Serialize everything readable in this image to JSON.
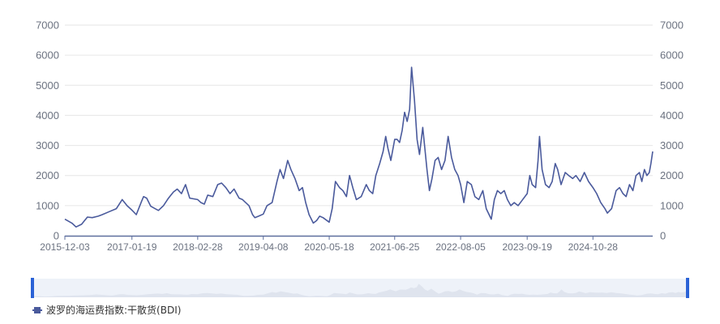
{
  "chart_data": {
    "type": "line",
    "title": "",
    "xlabel": "",
    "ylabel": "",
    "ylim": [
      0,
      7000
    ],
    "y_ticks": [
      0,
      1000,
      2000,
      3000,
      4000,
      5000,
      6000,
      7000
    ],
    "y_tick_labels": [
      "0",
      "1000",
      "2000",
      "3000",
      "4000",
      "5000",
      "6000",
      "7000"
    ],
    "x_range": [
      "2015-12-03",
      "2025-10-31"
    ],
    "x_tick_labels": [
      "2015-12-03",
      "2017-01-19",
      "2018-02-28",
      "2019-04-08",
      "2020-05-18",
      "2021-06-25",
      "2022-08-05",
      "2023-09-19",
      "2024-10-28"
    ],
    "dual_y_axis": true,
    "grid": "horizontal",
    "legend_position": "bottom-left",
    "colors": {
      "line": "#4a5a9c",
      "grid": "#e6e6e6",
      "axis": "#5e6f9e",
      "zoom_bg": "#eef2f9",
      "zoom_handle": "#2a62d6",
      "zoom_area": "#dfe4ee"
    },
    "series": [
      {
        "name": "波罗的海运费指数:干散货(BDI)",
        "points": [
          [
            "2015-12-03",
            550
          ],
          [
            "2016-01-15",
            420
          ],
          [
            "2016-02-10",
            290
          ],
          [
            "2016-03-15",
            380
          ],
          [
            "2016-04-20",
            620
          ],
          [
            "2016-05-20",
            600
          ],
          [
            "2016-06-25",
            650
          ],
          [
            "2016-07-20",
            700
          ],
          [
            "2016-09-01",
            800
          ],
          [
            "2016-10-15",
            900
          ],
          [
            "2016-11-20",
            1200
          ],
          [
            "2016-12-20",
            1000
          ],
          [
            "2017-01-19",
            850
          ],
          [
            "2017-02-15",
            700
          ],
          [
            "2017-03-20",
            1150
          ],
          [
            "2017-04-01",
            1300
          ],
          [
            "2017-04-20",
            1250
          ],
          [
            "2017-05-15",
            980
          ],
          [
            "2017-06-10",
            900
          ],
          [
            "2017-07-01",
            840
          ],
          [
            "2017-08-01",
            1000
          ],
          [
            "2017-09-01",
            1250
          ],
          [
            "2017-10-01",
            1450
          ],
          [
            "2017-10-25",
            1550
          ],
          [
            "2017-11-20",
            1400
          ],
          [
            "2017-12-15",
            1700
          ],
          [
            "2018-01-10",
            1250
          ],
          [
            "2018-02-28",
            1200
          ],
          [
            "2018-03-20",
            1100
          ],
          [
            "2018-04-10",
            1050
          ],
          [
            "2018-05-01",
            1350
          ],
          [
            "2018-06-01",
            1300
          ],
          [
            "2018-07-01",
            1700
          ],
          [
            "2018-07-25",
            1750
          ],
          [
            "2018-08-20",
            1600
          ],
          [
            "2018-09-15",
            1400
          ],
          [
            "2018-10-10",
            1550
          ],
          [
            "2018-11-10",
            1250
          ],
          [
            "2018-12-01",
            1200
          ],
          [
            "2019-01-10",
            1000
          ],
          [
            "2019-02-01",
            700
          ],
          [
            "2019-02-15",
            600
          ],
          [
            "2019-03-10",
            650
          ],
          [
            "2019-04-08",
            720
          ],
          [
            "2019-05-01",
            1000
          ],
          [
            "2019-06-01",
            1100
          ],
          [
            "2019-07-01",
            1800
          ],
          [
            "2019-07-20",
            2200
          ],
          [
            "2019-08-10",
            1900
          ],
          [
            "2019-09-05",
            2500
          ],
          [
            "2019-09-25",
            2200
          ],
          [
            "2019-10-20",
            1900
          ],
          [
            "2019-11-15",
            1500
          ],
          [
            "2019-12-05",
            1600
          ],
          [
            "2019-12-25",
            1100
          ],
          [
            "2020-01-15",
            700
          ],
          [
            "2020-02-10",
            420
          ],
          [
            "2020-03-01",
            500
          ],
          [
            "2020-03-20",
            650
          ],
          [
            "2020-04-10",
            600
          ],
          [
            "2020-05-18",
            450
          ],
          [
            "2020-06-05",
            900
          ],
          [
            "2020-06-25",
            1800
          ],
          [
            "2020-07-20",
            1600
          ],
          [
            "2020-08-10",
            1500
          ],
          [
            "2020-09-01",
            1300
          ],
          [
            "2020-09-20",
            2000
          ],
          [
            "2020-10-10",
            1600
          ],
          [
            "2020-11-01",
            1200
          ],
          [
            "2020-12-01",
            1300
          ],
          [
            "2021-01-01",
            1700
          ],
          [
            "2021-01-20",
            1500
          ],
          [
            "2021-02-10",
            1400
          ],
          [
            "2021-03-01",
            2000
          ],
          [
            "2021-03-25",
            2400
          ],
          [
            "2021-04-15",
            2800
          ],
          [
            "2021-05-01",
            3300
          ],
          [
            "2021-05-15",
            2900
          ],
          [
            "2021-06-01",
            2500
          ],
          [
            "2021-06-25",
            3200
          ],
          [
            "2021-07-10",
            3200
          ],
          [
            "2021-07-25",
            3100
          ],
          [
            "2021-08-10",
            3500
          ],
          [
            "2021-08-25",
            4100
          ],
          [
            "2021-09-10",
            3800
          ],
          [
            "2021-09-25",
            4200
          ],
          [
            "2021-10-07",
            5600
          ],
          [
            "2021-10-25",
            4500
          ],
          [
            "2021-11-10",
            3200
          ],
          [
            "2021-11-25",
            2700
          ],
          [
            "2021-12-15",
            3600
          ],
          [
            "2022-01-10",
            2200
          ],
          [
            "2022-01-25",
            1500
          ],
          [
            "2022-02-10",
            1900
          ],
          [
            "2022-03-01",
            2500
          ],
          [
            "2022-03-20",
            2600
          ],
          [
            "2022-04-10",
            2200
          ],
          [
            "2022-05-01",
            2500
          ],
          [
            "2022-05-20",
            3300
          ],
          [
            "2022-06-10",
            2600
          ],
          [
            "2022-06-30",
            2200
          ],
          [
            "2022-07-20",
            2000
          ],
          [
            "2022-08-05",
            1700
          ],
          [
            "2022-08-25",
            1100
          ],
          [
            "2022-09-15",
            1800
          ],
          [
            "2022-10-10",
            1700
          ],
          [
            "2022-11-01",
            1300
          ],
          [
            "2022-11-25",
            1200
          ],
          [
            "2022-12-20",
            1500
          ],
          [
            "2023-01-10",
            900
          ],
          [
            "2023-02-10",
            550
          ],
          [
            "2023-03-01",
            1200
          ],
          [
            "2023-03-20",
            1500
          ],
          [
            "2023-04-10",
            1400
          ],
          [
            "2023-05-01",
            1500
          ],
          [
            "2023-05-20",
            1200
          ],
          [
            "2023-06-10",
            1000
          ],
          [
            "2023-07-01",
            1100
          ],
          [
            "2023-07-25",
            1000
          ],
          [
            "2023-08-15",
            1150
          ],
          [
            "2023-09-19",
            1400
          ],
          [
            "2023-10-05",
            2000
          ],
          [
            "2023-10-20",
            1700
          ],
          [
            "2023-11-10",
            1600
          ],
          [
            "2023-11-25",
            2500
          ],
          [
            "2023-12-04",
            3300
          ],
          [
            "2023-12-20",
            2200
          ],
          [
            "2024-01-10",
            1700
          ],
          [
            "2024-02-01",
            1600
          ],
          [
            "2024-02-20",
            1800
          ],
          [
            "2024-03-10",
            2400
          ],
          [
            "2024-03-25",
            2200
          ],
          [
            "2024-04-15",
            1700
          ],
          [
            "2024-05-10",
            2100
          ],
          [
            "2024-06-01",
            2000
          ],
          [
            "2024-06-25",
            1900
          ],
          [
            "2024-07-15",
            2000
          ],
          [
            "2024-08-10",
            1800
          ],
          [
            "2024-09-05",
            2100
          ],
          [
            "2024-10-01",
            1800
          ],
          [
            "2024-10-28",
            1600
          ],
          [
            "2024-11-20",
            1400
          ],
          [
            "2024-12-15",
            1100
          ],
          [
            "2025-01-10",
            900
          ],
          [
            "2025-01-25",
            750
          ],
          [
            "2025-02-20",
            900
          ],
          [
            "2025-03-20",
            1500
          ],
          [
            "2025-04-10",
            1600
          ],
          [
            "2025-05-01",
            1400
          ],
          [
            "2025-05-20",
            1300
          ],
          [
            "2025-06-10",
            1700
          ],
          [
            "2025-07-01",
            1500
          ],
          [
            "2025-07-20",
            2000
          ],
          [
            "2025-08-10",
            2100
          ],
          [
            "2025-08-25",
            1800
          ],
          [
            "2025-09-10",
            2200
          ],
          [
            "2025-09-25",
            2000
          ],
          [
            "2025-10-10",
            2100
          ],
          [
            "2025-10-20",
            2400
          ],
          [
            "2025-10-31",
            2800
          ]
        ]
      }
    ]
  }
}
